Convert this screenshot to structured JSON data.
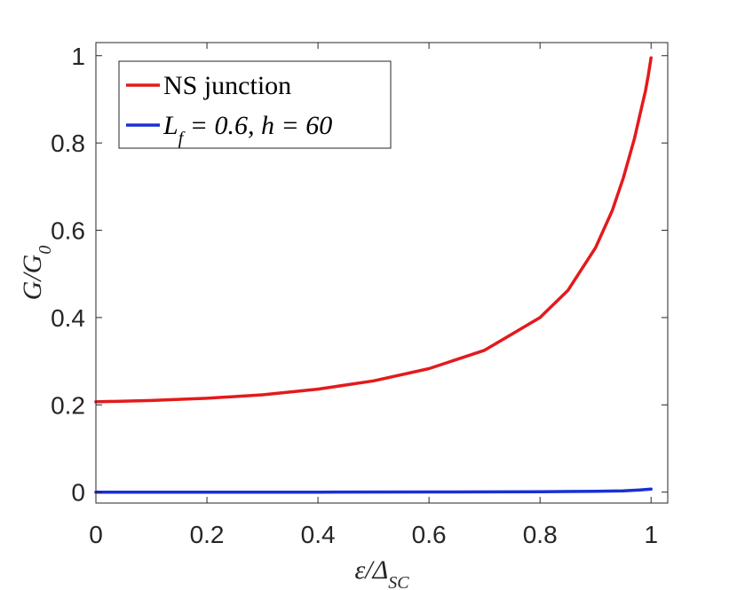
{
  "chart_data": {
    "type": "line",
    "title": "",
    "xlabel": "ε/Δ_SC",
    "ylabel": "G/G_0",
    "xlim": [
      0,
      1.03
    ],
    "ylim": [
      -0.025,
      1.03
    ],
    "xticks": [
      0,
      0.2,
      0.4,
      0.6,
      0.8,
      1
    ],
    "xtick_labels": [
      "0",
      "0.2",
      "0.4",
      "0.6",
      "0.8",
      "1"
    ],
    "yticks": [
      0,
      0.2,
      0.4,
      0.6,
      0.8,
      1
    ],
    "ytick_labels": [
      "0",
      "0.2",
      "0.4",
      "0.6",
      "0.8",
      "1"
    ],
    "grid": false,
    "legend_position": "top-left",
    "series": [
      {
        "name": "NS junction",
        "color": "#e31a1c",
        "x": [
          0,
          0.1,
          0.2,
          0.3,
          0.4,
          0.5,
          0.6,
          0.7,
          0.8,
          0.85,
          0.9,
          0.93,
          0.95,
          0.97,
          0.98,
          0.99,
          0.995,
          1.0
        ],
        "y": [
          0.207,
          0.21,
          0.215,
          0.223,
          0.236,
          0.255,
          0.283,
          0.325,
          0.4,
          0.462,
          0.56,
          0.645,
          0.72,
          0.81,
          0.865,
          0.92,
          0.955,
          0.995
        ]
      },
      {
        "name": "L_f = 0.6, h = 60",
        "color": "#1a2fd6",
        "x": [
          0,
          0.2,
          0.4,
          0.6,
          0.8,
          0.9,
          0.95,
          0.98,
          1.0
        ],
        "y": [
          0.0,
          0.0,
          0.0,
          0.0005,
          0.001,
          0.002,
          0.003,
          0.005,
          0.007
        ]
      }
    ]
  }
}
